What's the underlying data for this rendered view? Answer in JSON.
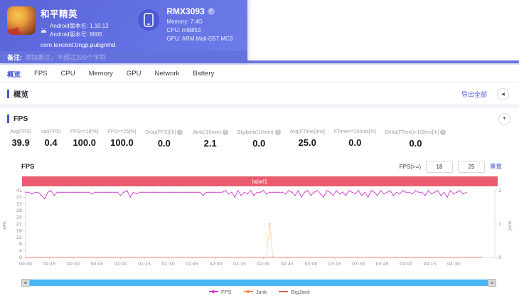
{
  "header": {
    "app": {
      "name": "和平精英",
      "android_version_name": "Android版本名: 1.10.12",
      "android_version_code": "Android版本号: 9005",
      "package": "com.tencent.tmgp.pubgmhd"
    },
    "device": {
      "model": "RMX3093",
      "memory": "Memory: 7.4G",
      "cpu": "CPU: mt6853",
      "gpu": "GPU: ARM Mali-G57 MC3"
    },
    "note": {
      "label": "备注:",
      "placeholder": "添加备注，不超过200个字符"
    }
  },
  "tabs": [
    {
      "label": "概览",
      "active": true
    },
    {
      "label": "FPS",
      "active": false
    },
    {
      "label": "CPU",
      "active": false
    },
    {
      "label": "Memory",
      "active": false
    },
    {
      "label": "GPU",
      "active": false
    },
    {
      "label": "Network",
      "active": false
    },
    {
      "label": "Battery",
      "active": false
    }
  ],
  "overview": {
    "title": "概览",
    "export_label": "导出全部",
    "collapse_icon": "◀"
  },
  "fps_section": {
    "title": "FPS",
    "collapse_icon": "▼",
    "stats": [
      {
        "label": "Avg(FPS)",
        "value": "39.9",
        "help": false
      },
      {
        "label": "Var(FPS)",
        "value": "0.4",
        "help": false
      },
      {
        "label": "FPS>=18[%]",
        "value": "100.0",
        "help": false
      },
      {
        "label": "FPS>=25[%]",
        "value": "100.0",
        "help": false
      },
      {
        "label": "Drop(FPS)[/h]",
        "value": "0.0",
        "help": true
      },
      {
        "label": "Jank(/10min)",
        "value": "2.1",
        "help": true
      },
      {
        "label": "BigJank(/10min)",
        "value": "0.0",
        "help": true
      },
      {
        "label": "Avg(FTime)[ms]",
        "value": "25.0",
        "help": false
      },
      {
        "label": "FTime>=100ms[%]",
        "value": "0.0",
        "help": false
      },
      {
        "label": "Delta(FTime)>100ms[/h]",
        "value": "0.0",
        "help": true
      }
    ],
    "chart_name": "FPS",
    "threshold": {
      "label": "FPS(>=)",
      "low": "18",
      "high": "25",
      "reset_label": "重置"
    }
  },
  "colors": {
    "accent": "#4657d8",
    "label_bar": "#ea5b6e",
    "scrollbar": "#47b7f3",
    "header_gradient_start": "#5963d8",
    "header_gradient_end": "#6e7ce9"
  },
  "chart_data": {
    "type": "line",
    "title": "label1",
    "x_unit": "mm:ss",
    "x_range_s": [
      0,
      296
    ],
    "x_ticks": [
      "00:00",
      "00:15",
      "00:30",
      "00:45",
      "01:00",
      "01:15",
      "01:30",
      "01:45",
      "02:00",
      "02:15",
      "02:30",
      "02:45",
      "03:00",
      "03:15",
      "03:30",
      "03:45",
      "04:00",
      "04:15",
      "04:30"
    ],
    "y_axis_left": {
      "name": "FPS",
      "range": [
        0,
        41
      ],
      "ticks": [
        "0",
        "4",
        "8",
        "12",
        "16",
        "21",
        "25",
        "29",
        "33",
        "37",
        "41"
      ]
    },
    "y_axis_right": {
      "name": "Jank",
      "range": [
        0,
        2
      ],
      "ticks": [
        "0",
        "1",
        "2"
      ]
    },
    "legend": [
      "FPS",
      "Jank",
      "BigJank"
    ],
    "series": [
      {
        "name": "FPS",
        "color": "#cf3ecf",
        "axis": "left",
        "x_step_s": 2,
        "values": [
          40,
          40,
          39,
          40,
          40,
          38,
          36,
          40,
          41,
          38,
          40,
          40,
          40,
          40,
          40,
          40,
          40,
          40,
          40,
          40,
          40,
          39,
          40,
          40,
          40,
          40,
          40,
          40,
          40,
          40,
          38,
          40,
          41,
          37,
          40,
          39,
          40,
          40,
          40,
          40,
          40,
          40,
          40,
          40,
          40,
          40,
          40,
          40,
          40,
          40,
          40,
          40,
          40,
          40,
          40,
          40,
          38,
          40,
          40,
          40,
          40,
          40,
          40,
          41,
          39,
          40,
          37,
          41,
          38,
          40,
          39,
          41,
          38,
          40,
          40,
          41,
          39,
          40,
          40,
          40,
          40,
          40,
          39,
          41,
          40,
          38,
          41,
          37,
          40,
          41,
          38,
          40,
          41,
          39,
          37,
          41,
          40,
          38,
          41,
          39,
          40,
          38,
          41,
          40,
          39,
          41,
          38,
          40,
          37,
          41,
          40,
          38,
          41,
          39,
          40,
          41,
          38,
          40,
          39,
          41,
          40,
          40,
          39,
          41,
          40,
          40,
          38,
          41,
          39,
          40,
          41,
          38,
          40,
          37,
          41,
          39,
          40,
          41,
          39,
          40
        ]
      },
      {
        "name": "Jank",
        "color": "#ef8c48",
        "axis": "right",
        "points": [
          [
            0,
            0
          ],
          [
            152,
            0
          ],
          [
            154,
            1
          ],
          [
            156,
            0
          ],
          [
            288,
            0
          ]
        ]
      },
      {
        "name": "BigJank",
        "color": "#ee5b5b",
        "axis": "right",
        "points": [
          [
            0,
            0
          ],
          [
            288,
            0
          ]
        ]
      }
    ]
  }
}
